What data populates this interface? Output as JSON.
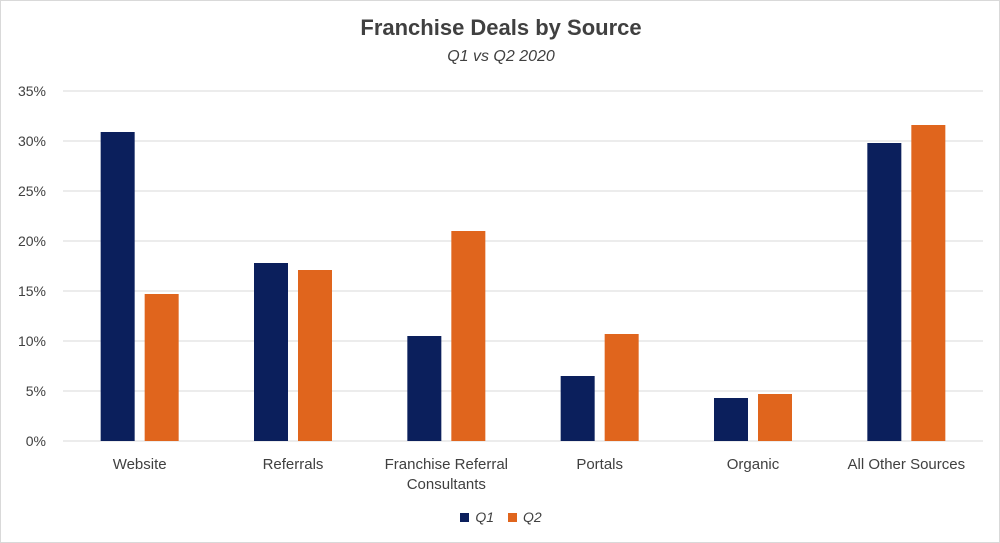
{
  "chart_data": {
    "type": "bar",
    "title": "Franchise Deals by Source",
    "subtitle": "Q1 vs Q2 2020",
    "categories": [
      "Website",
      "Referrals",
      "Franchise Referral Consultants",
      "Portals",
      "Organic",
      "All Other Sources"
    ],
    "category_lines": [
      [
        "Website"
      ],
      [
        "Referrals"
      ],
      [
        "Franchise Referral",
        "Consultants"
      ],
      [
        "Portals"
      ],
      [
        "Organic"
      ],
      [
        "All Other Sources"
      ]
    ],
    "series": [
      {
        "name": "Q1",
        "color": "#0b1f5c",
        "values": [
          30.9,
          17.8,
          10.5,
          6.5,
          4.3,
          29.8
        ]
      },
      {
        "name": "Q2",
        "color": "#e0651d",
        "values": [
          14.7,
          17.1,
          21.0,
          10.7,
          4.7,
          31.6
        ]
      }
    ],
    "ylim": [
      0,
      35
    ],
    "yticks": [
      0,
      5,
      10,
      15,
      20,
      25,
      30,
      35
    ],
    "ytick_labels": [
      "0%",
      "5%",
      "10%",
      "15%",
      "20%",
      "25%",
      "30%",
      "35%"
    ],
    "grid": true,
    "legend_position": "bottom"
  }
}
